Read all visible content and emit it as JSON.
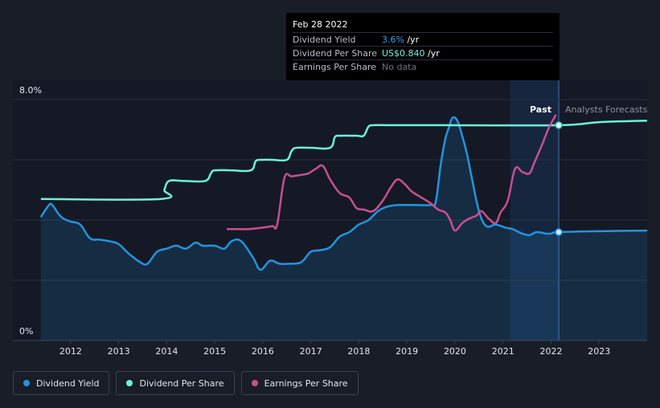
{
  "tooltip": {
    "date": "Feb 28 2022",
    "rows": [
      {
        "name": "Dividend Yield",
        "value": "3.6%",
        "unit": " /yr"
      },
      {
        "name": "Dividend Per Share",
        "value": "US$0.840",
        "unit": " /yr"
      },
      {
        "name": "Earnings Per Share",
        "value": "No data",
        "unit": ""
      }
    ]
  },
  "labels": {
    "past": "Past",
    "forecast": "Analysts Forecasts"
  },
  "legend": [
    {
      "label": "Dividend Yield",
      "color": "#2394df"
    },
    {
      "label": "Dividend Per Share",
      "color": "#6ff1d8"
    },
    {
      "label": "Earnings Per Share",
      "color": "#c94f8f"
    }
  ],
  "colors": {
    "background": "#181d27",
    "yield": "#2394df",
    "dps": "#6ff1d8",
    "eps": "#c94f8f"
  },
  "chart_data": {
    "type": "line",
    "ylim": [
      0,
      8
    ],
    "y_tick_labels": [
      "8.0%",
      "0%"
    ],
    "x_tick_labels": [
      "2012",
      "2013",
      "2014",
      "2015",
      "2016",
      "2017",
      "2018",
      "2019",
      "2020",
      "2021",
      "2022",
      "2023"
    ],
    "xlim": [
      2011.35,
      2024.0
    ],
    "grid": true,
    "past_boundary": 2022.16,
    "forecast_region_start": 2021.15,
    "series": [
      {
        "name": "Dividend Yield",
        "unit": "%",
        "area": true,
        "points": [
          [
            2011.38,
            4.1
          ],
          [
            2011.55,
            4.5
          ],
          [
            2011.62,
            4.5
          ],
          [
            2011.75,
            4.2
          ],
          [
            2011.85,
            4.05
          ],
          [
            2012.0,
            3.95
          ],
          [
            2012.2,
            3.85
          ],
          [
            2012.4,
            3.4
          ],
          [
            2012.6,
            3.35
          ],
          [
            2012.8,
            3.3
          ],
          [
            2013.0,
            3.2
          ],
          [
            2013.2,
            2.9
          ],
          [
            2013.45,
            2.6
          ],
          [
            2013.6,
            2.55
          ],
          [
            2013.8,
            2.95
          ],
          [
            2014.0,
            3.05
          ],
          [
            2014.2,
            3.15
          ],
          [
            2014.4,
            3.05
          ],
          [
            2014.6,
            3.25
          ],
          [
            2014.75,
            3.15
          ],
          [
            2015.0,
            3.15
          ],
          [
            2015.2,
            3.05
          ],
          [
            2015.35,
            3.3
          ],
          [
            2015.55,
            3.3
          ],
          [
            2015.8,
            2.75
          ],
          [
            2015.95,
            2.35
          ],
          [
            2016.15,
            2.65
          ],
          [
            2016.35,
            2.55
          ],
          [
            2016.55,
            2.55
          ],
          [
            2016.8,
            2.6
          ],
          [
            2017.0,
            2.95
          ],
          [
            2017.2,
            3.0
          ],
          [
            2017.4,
            3.1
          ],
          [
            2017.6,
            3.45
          ],
          [
            2017.8,
            3.6
          ],
          [
            2018.0,
            3.85
          ],
          [
            2018.2,
            4.0
          ],
          [
            2018.4,
            4.3
          ],
          [
            2018.6,
            4.45
          ],
          [
            2018.8,
            4.5
          ],
          [
            2019.0,
            4.5
          ],
          [
            2019.2,
            4.5
          ],
          [
            2019.5,
            4.5
          ],
          [
            2019.6,
            4.6
          ],
          [
            2019.7,
            5.8
          ],
          [
            2019.8,
            6.7
          ],
          [
            2019.88,
            7.1
          ],
          [
            2019.95,
            7.4
          ],
          [
            2020.05,
            7.3
          ],
          [
            2020.15,
            6.8
          ],
          [
            2020.25,
            6.2
          ],
          [
            2020.35,
            5.4
          ],
          [
            2020.5,
            4.3
          ],
          [
            2020.65,
            3.8
          ],
          [
            2020.85,
            3.85
          ],
          [
            2021.05,
            3.75
          ],
          [
            2021.2,
            3.7
          ],
          [
            2021.4,
            3.55
          ],
          [
            2021.55,
            3.5
          ],
          [
            2021.7,
            3.6
          ],
          [
            2021.9,
            3.55
          ],
          [
            2022.0,
            3.55
          ],
          [
            2022.16,
            3.6
          ],
          [
            2023.0,
            3.63
          ],
          [
            2024.0,
            3.65
          ]
        ]
      },
      {
        "name": "Dividend Per Share",
        "points": [
          [
            2011.38,
            4.7
          ],
          [
            2013.88,
            4.7
          ],
          [
            2013.95,
            5.0
          ],
          [
            2014.05,
            5.3
          ],
          [
            2014.35,
            5.3
          ],
          [
            2014.8,
            5.3
          ],
          [
            2014.92,
            5.55
          ],
          [
            2015.0,
            5.65
          ],
          [
            2015.35,
            5.65
          ],
          [
            2015.75,
            5.65
          ],
          [
            2015.85,
            5.95
          ],
          [
            2015.95,
            6.0
          ],
          [
            2016.2,
            6.0
          ],
          [
            2016.5,
            6.0
          ],
          [
            2016.6,
            6.3
          ],
          [
            2016.7,
            6.4
          ],
          [
            2017.0,
            6.4
          ],
          [
            2017.4,
            6.4
          ],
          [
            2017.5,
            6.75
          ],
          [
            2017.6,
            6.8
          ],
          [
            2017.95,
            6.8
          ],
          [
            2018.1,
            6.8
          ],
          [
            2018.2,
            7.1
          ],
          [
            2018.3,
            7.15
          ],
          [
            2018.6,
            7.15
          ],
          [
            2019.0,
            7.15
          ],
          [
            2019.25,
            7.15
          ],
          [
            2019.5,
            7.15
          ],
          [
            2019.7,
            7.15
          ],
          [
            2022.16,
            7.15
          ],
          [
            2023.0,
            7.25
          ],
          [
            2024.0,
            7.3
          ]
        ]
      },
      {
        "name": "Earnings Per Share",
        "points": [
          [
            2015.25,
            3.7
          ],
          [
            2015.5,
            3.7
          ],
          [
            2015.7,
            3.7
          ],
          [
            2016.0,
            3.75
          ],
          [
            2016.2,
            3.8
          ],
          [
            2016.3,
            3.85
          ],
          [
            2016.45,
            5.4
          ],
          [
            2016.6,
            5.45
          ],
          [
            2016.8,
            5.5
          ],
          [
            2016.95,
            5.55
          ],
          [
            2017.1,
            5.7
          ],
          [
            2017.25,
            5.8
          ],
          [
            2017.4,
            5.35
          ],
          [
            2017.6,
            4.9
          ],
          [
            2017.8,
            4.75
          ],
          [
            2017.95,
            4.4
          ],
          [
            2018.1,
            4.35
          ],
          [
            2018.3,
            4.3
          ],
          [
            2018.5,
            4.65
          ],
          [
            2018.65,
            5.05
          ],
          [
            2018.8,
            5.35
          ],
          [
            2018.95,
            5.2
          ],
          [
            2019.1,
            4.95
          ],
          [
            2019.3,
            4.75
          ],
          [
            2019.5,
            4.55
          ],
          [
            2019.65,
            4.35
          ],
          [
            2019.8,
            4.25
          ],
          [
            2019.9,
            4.0
          ],
          [
            2020.0,
            3.65
          ],
          [
            2020.15,
            3.9
          ],
          [
            2020.3,
            4.05
          ],
          [
            2020.45,
            4.15
          ],
          [
            2020.55,
            4.3
          ],
          [
            2020.7,
            4.05
          ],
          [
            2020.85,
            3.9
          ],
          [
            2020.95,
            4.25
          ],
          [
            2021.1,
            4.65
          ],
          [
            2021.25,
            5.7
          ],
          [
            2021.4,
            5.6
          ],
          [
            2021.55,
            5.55
          ],
          [
            2021.65,
            5.9
          ],
          [
            2021.8,
            6.45
          ],
          [
            2021.95,
            7.05
          ],
          [
            2022.05,
            7.35
          ],
          [
            2022.1,
            7.5
          ]
        ]
      }
    ]
  }
}
